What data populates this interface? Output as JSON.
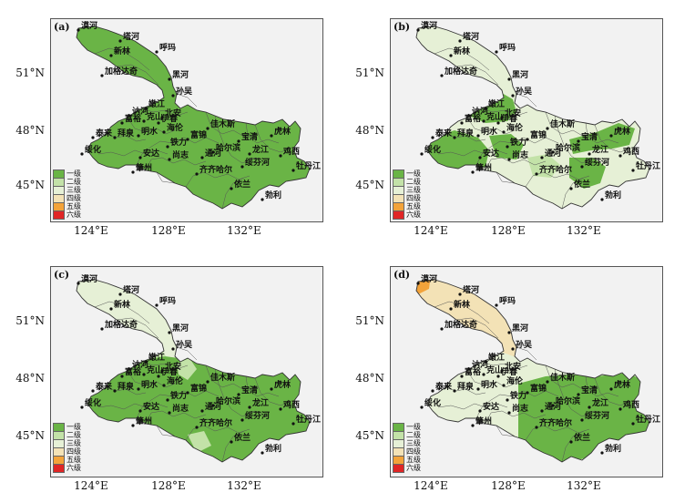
{
  "colors": {
    "level1": "#6ab446",
    "level2": "#c3e2a8",
    "level3": "#e6f0d6",
    "level4": "#f3e2b6",
    "level5": "#f3a33a",
    "level6": "#e02626",
    "border": "#333333",
    "frame_bg": "#f2f2f2"
  },
  "lat_labels": [
    "51°N",
    "48°N",
    "45°N"
  ],
  "lon_labels": [
    "124°E",
    "128°E",
    "132°E"
  ],
  "panels": [
    {
      "label": "(a)",
      "legend": [
        "一级",
        "二级",
        "三级",
        "四级",
        "五级",
        "六级"
      ]
    },
    {
      "label": "(b)",
      "legend": [
        "一级",
        "二级",
        "三级",
        "四级",
        "五级",
        "六级"
      ]
    },
    {
      "label": "(c)",
      "legend": [
        "一级",
        "二级",
        "三级",
        "四级",
        "五级",
        "六级"
      ]
    },
    {
      "label": "(d)",
      "legend": [
        "一级",
        "二级",
        "三级",
        "四级",
        "五级",
        "六级"
      ]
    }
  ],
  "cities": [
    "漠河",
    "塔河",
    "新林",
    "呼玛",
    "加格达奇",
    "黑河",
    "孙吴",
    "嫩江",
    "北安",
    "富裕",
    "克山",
    "讷河",
    "海伦",
    "明水",
    "泰来",
    "拜泉",
    "绥化",
    "伊春",
    "铁力",
    "佳木斯",
    "富锦",
    "宝清",
    "虎林",
    "鸡西",
    "牡丹江",
    "绥芬河",
    "哈尔滨",
    "通河",
    "尚志",
    "安达",
    "肇州",
    "齐齐哈尔",
    "龙江",
    "依兰",
    "勃利"
  ]
}
